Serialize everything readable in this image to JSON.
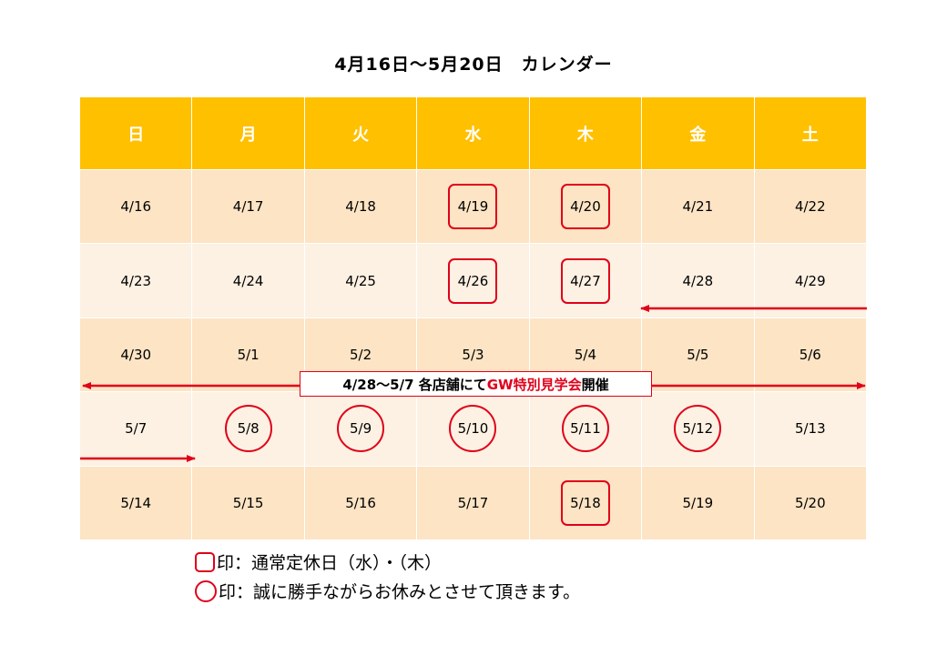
{
  "title": "4月16日～5月20日　カレンダー",
  "weekdays": [
    "日",
    "月",
    "火",
    "水",
    "木",
    "金",
    "土"
  ],
  "weeks": [
    [
      "4/16",
      "4/17",
      "4/18",
      "4/19",
      "4/20",
      "4/21",
      "4/22"
    ],
    [
      "4/23",
      "4/24",
      "4/25",
      "4/26",
      "4/27",
      "4/28",
      "4/29"
    ],
    [
      "4/30",
      "5/1",
      "5/2",
      "5/3",
      "5/4",
      "5/5",
      "5/6"
    ],
    [
      "5/7",
      "5/8",
      "5/9",
      "5/10",
      "5/11",
      "5/12",
      "5/13"
    ],
    [
      "5/14",
      "5/15",
      "5/16",
      "5/17",
      "5/18",
      "5/19",
      "5/20"
    ]
  ],
  "event": {
    "prefix": "4/28～5/7 各店舗にて",
    "highlight": "GW特別見学会",
    "suffix": "開催"
  },
  "legend": {
    "square_text": "印：通常定休日（水）・（木）",
    "circle_text": "印：誠に勝手ながらお休みとさせて頂きます。"
  },
  "colors": {
    "header": "#ffc000",
    "row_dark": "#fce4c4",
    "row_light": "#fdf1e3",
    "mark": "#e0001a"
  }
}
